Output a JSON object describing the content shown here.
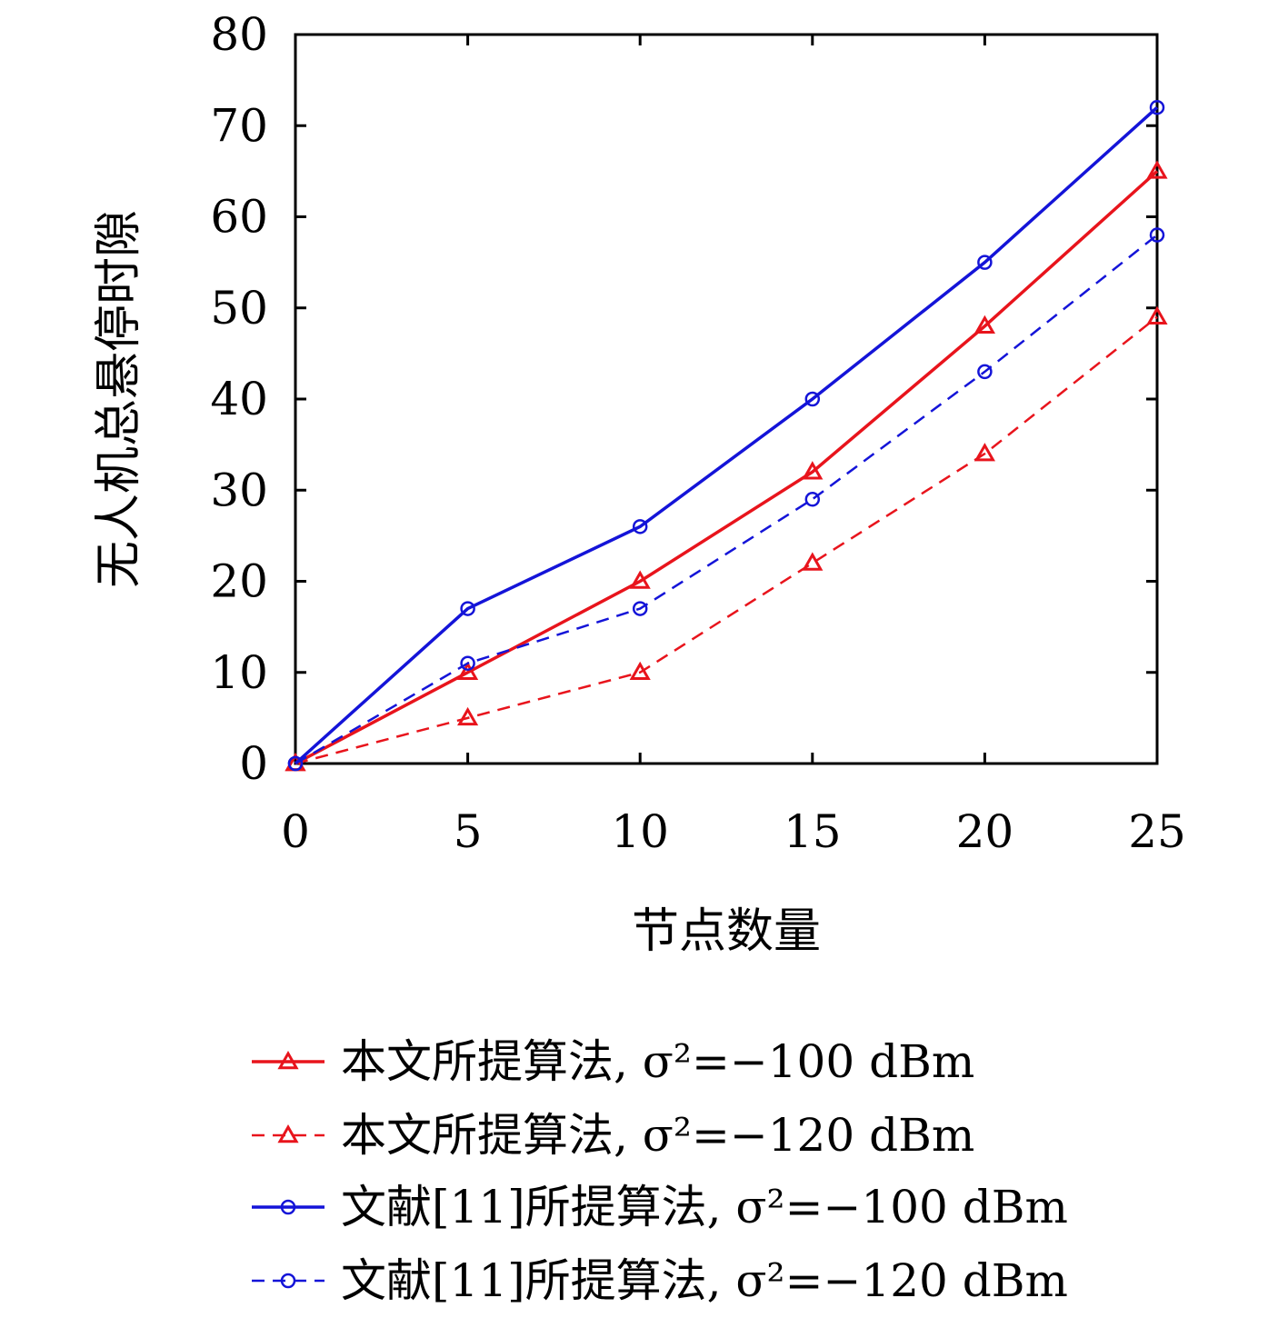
{
  "chart_data": {
    "type": "line",
    "xlabel": "节点数量",
    "ylabel": "无人机总悬停时隙",
    "xlim": [
      0,
      25
    ],
    "ylim": [
      0,
      80
    ],
    "xticks": [
      0,
      5,
      10,
      15,
      20,
      25
    ],
    "yticks": [
      0,
      10,
      20,
      30,
      40,
      50,
      60,
      70,
      80
    ],
    "xtick_labels": [
      "0",
      "5",
      "10",
      "15",
      "20",
      "25"
    ],
    "ytick_labels": [
      "0",
      "10",
      "20",
      "30",
      "40",
      "50",
      "60",
      "70",
      "80"
    ],
    "grid": false,
    "legend_position": "bottom",
    "x": [
      0,
      5,
      10,
      15,
      20,
      25
    ],
    "series": [
      {
        "name": "本文所提算法, σ²=−100 dBm",
        "values": [
          0,
          10,
          20,
          32,
          48,
          65
        ],
        "color": "#e8141c",
        "dash": "solid",
        "marker": "triangle"
      },
      {
        "name": "本文所提算法, σ²=−120 dBm",
        "values": [
          0,
          5,
          10,
          22,
          34,
          49
        ],
        "color": "#e8141c",
        "dash": "dashed",
        "marker": "triangle"
      },
      {
        "name": "文献[11]所提算法, σ²=−100 dBm",
        "values": [
          0,
          17,
          26,
          40,
          55,
          72
        ],
        "color": "#1414d8",
        "dash": "solid",
        "marker": "circle"
      },
      {
        "name": "文献[11]所提算法, σ²=−120 dBm",
        "values": [
          0,
          11,
          17,
          29,
          43,
          58
        ],
        "color": "#1414d8",
        "dash": "dashed",
        "marker": "circle"
      }
    ]
  }
}
